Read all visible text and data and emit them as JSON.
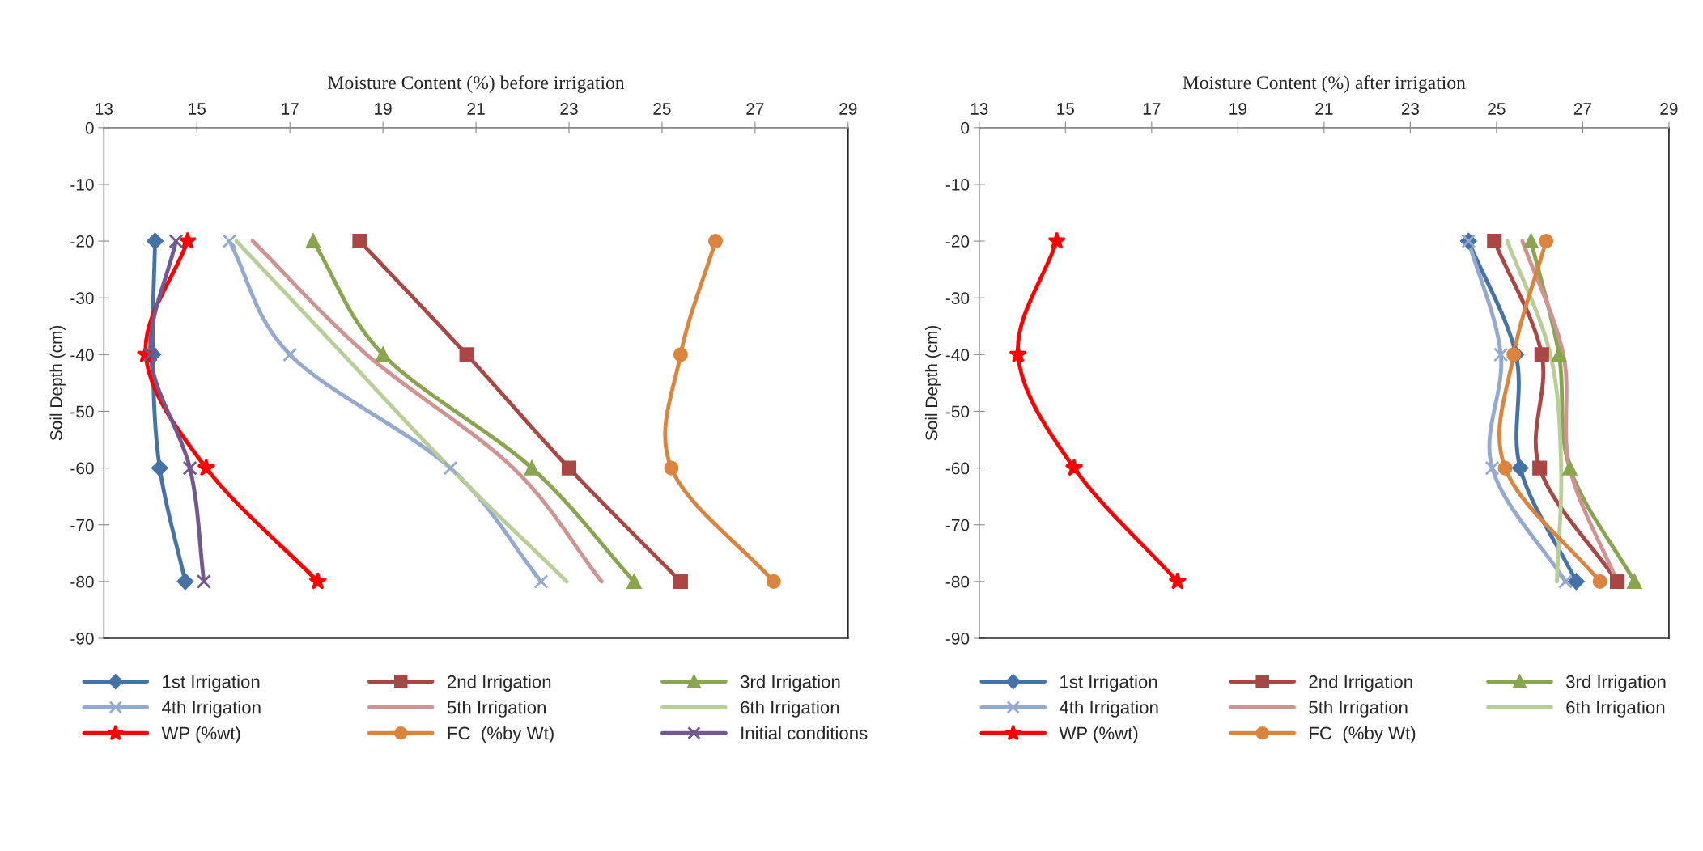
{
  "chart_data": [
    {
      "type": "line",
      "xlabel": "Moisture Content (%) before irrigation",
      "ylabel": "Soil Depth (cm)",
      "xlim": [
        13,
        29
      ],
      "xticks": [
        13,
        15,
        17,
        19,
        21,
        23,
        25,
        27,
        29
      ],
      "ylim": [
        -90,
        0
      ],
      "yticks": [
        0,
        -10,
        -20,
        -30,
        -40,
        -50,
        -60,
        -70,
        -80,
        -90
      ],
      "grid": false,
      "legend": "bottom",
      "series": [
        {
          "name": "1st Irrigation",
          "color": "#4572a7",
          "marker": "diamond",
          "x": [
            14.1,
            14.05,
            14.2,
            14.75
          ],
          "values": [
            -20,
            -40,
            -60,
            -80
          ]
        },
        {
          "name": "2nd Irrigation",
          "color": "#aa4643",
          "marker": "square",
          "x": [
            18.5,
            20.8,
            23.0,
            25.4
          ],
          "values": [
            -20,
            -40,
            -60,
            -80
          ]
        },
        {
          "name": "3rd Irrigation",
          "color": "#89a54e",
          "marker": "triangle",
          "x": [
            17.5,
            19.0,
            22.2,
            24.4
          ],
          "values": [
            -20,
            -40,
            -60,
            -80
          ]
        },
        {
          "name": "4th Irrigation",
          "color": "#93a9cf",
          "marker": "cross",
          "x": [
            15.7,
            17.0,
            20.45,
            22.4
          ],
          "values": [
            -20,
            -40,
            -60,
            -80
          ]
        },
        {
          "name": "5th Irrigation",
          "color": "#d09392",
          "marker": "none",
          "x": [
            16.2,
            18.65,
            21.8,
            23.7
          ],
          "values": [
            -20,
            -40,
            -60,
            -80
          ]
        },
        {
          "name": "6th Irrigation",
          "color": "#b9cd96",
          "marker": "none",
          "x": [
            15.85,
            18.15,
            20.45,
            22.95
          ],
          "values": [
            -20,
            -40,
            -60,
            -80
          ]
        },
        {
          "name": "WP (%wt)",
          "color": "#ff0000",
          "marker": "star",
          "x": [
            14.8,
            13.9,
            15.2,
            17.6
          ],
          "values": [
            -20,
            -40,
            -60,
            -80
          ]
        },
        {
          "name": "FC  (%by Wt)",
          "color": "#db843d",
          "marker": "circle",
          "x": [
            26.15,
            25.4,
            25.2,
            27.4
          ],
          "values": [
            -20,
            -40,
            -60,
            -80
          ]
        },
        {
          "name": "Initial conditions",
          "color": "#71588f",
          "marker": "cross",
          "x": [
            14.55,
            14.0,
            14.85,
            15.15
          ],
          "values": [
            -20,
            -40,
            -60,
            -80
          ]
        }
      ]
    },
    {
      "type": "line",
      "xlabel": "Moisture Content (%) after irrigation",
      "ylabel": "Soil Depth (cm)",
      "xlim": [
        13,
        29
      ],
      "xticks": [
        13,
        15,
        17,
        19,
        21,
        23,
        25,
        27,
        29
      ],
      "ylim": [
        -90,
        0
      ],
      "yticks": [
        0,
        -10,
        -20,
        -30,
        -40,
        -50,
        -60,
        -70,
        -80,
        -90
      ],
      "grid": false,
      "legend": "bottom",
      "series": [
        {
          "name": "1st Irrigation",
          "color": "#4572a7",
          "marker": "diamond",
          "x": [
            24.35,
            25.45,
            25.55,
            26.85
          ],
          "values": [
            -20,
            -40,
            -60,
            -80
          ]
        },
        {
          "name": "2nd Irrigation",
          "color": "#aa4643",
          "marker": "square",
          "x": [
            24.95,
            26.05,
            26.0,
            27.8
          ],
          "values": [
            -20,
            -40,
            -60,
            -80
          ]
        },
        {
          "name": "3rd Irrigation",
          "color": "#89a54e",
          "marker": "triangle",
          "x": [
            25.8,
            26.45,
            26.7,
            28.2
          ],
          "values": [
            -20,
            -40,
            -60,
            -80
          ]
        },
        {
          "name": "4th Irrigation",
          "color": "#93a9cf",
          "marker": "cross",
          "x": [
            24.35,
            25.1,
            24.9,
            26.6
          ],
          "values": [
            -20,
            -40,
            -60,
            -80
          ]
        },
        {
          "name": "5th Irrigation",
          "color": "#d09392",
          "marker": "none",
          "x": [
            25.6,
            26.55,
            26.7,
            27.8
          ],
          "values": [
            -20,
            -40,
            -60,
            -80
          ]
        },
        {
          "name": "6th Irrigation",
          "color": "#b9cd96",
          "marker": "none",
          "x": [
            25.25,
            26.25,
            26.5,
            26.4
          ],
          "values": [
            -20,
            -40,
            -60,
            -80
          ]
        },
        {
          "name": "WP (%wt)",
          "color": "#ff0000",
          "marker": "star",
          "x": [
            14.8,
            13.9,
            15.2,
            17.6
          ],
          "values": [
            -20,
            -40,
            -60,
            -80
          ]
        },
        {
          "name": "FC  (%by Wt)",
          "color": "#db843d",
          "marker": "circle",
          "x": [
            26.15,
            25.4,
            25.2,
            27.4
          ],
          "values": [
            -20,
            -40,
            -60,
            -80
          ]
        }
      ]
    }
  ]
}
